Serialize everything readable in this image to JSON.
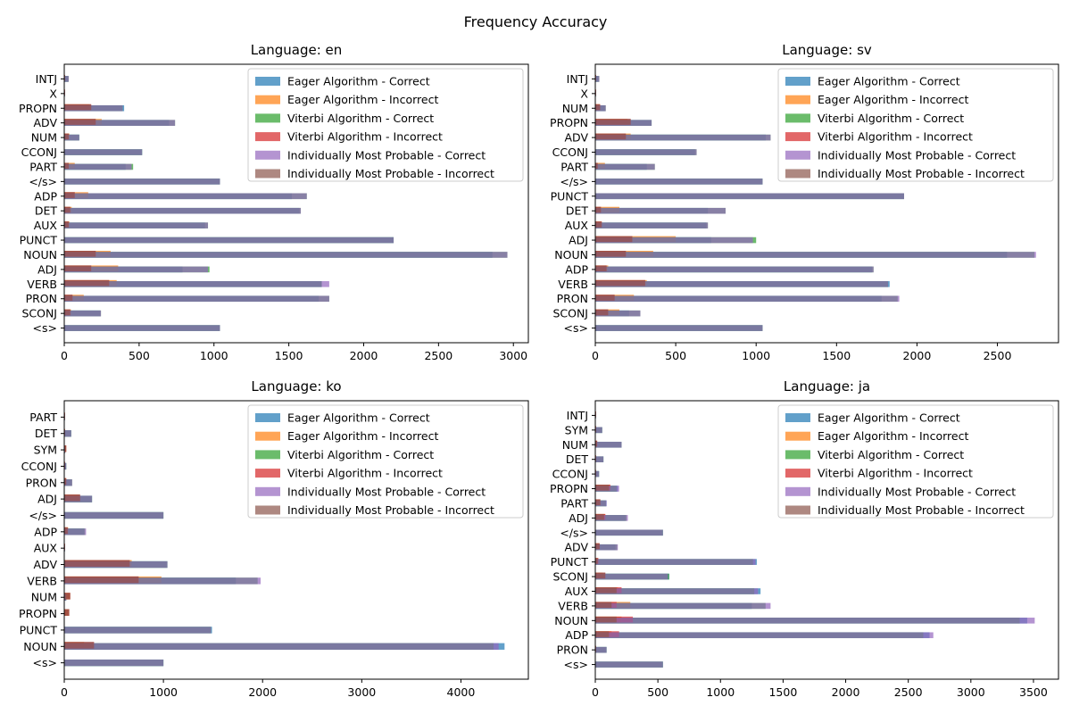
{
  "figure_title": "Frequency Accuracy",
  "legend_labels": [
    "Eager Algorithm - Correct",
    "Eager Algorithm - Incorrect",
    "Viterbi Algorithm - Correct",
    "Viterbi Algorithm - Incorrect",
    "Individually Most Probable - Correct",
    "Individually Most Probable - Incorrect"
  ],
  "colors": [
    "#1f77b4",
    "#ff7f0e",
    "#2ca02c",
    "#d62728",
    "#9467bd",
    "#8c564b"
  ],
  "chart_data": [
    {
      "type": "bar",
      "orientation": "horizontal",
      "title": "Language: en",
      "legend_position": "top-right",
      "categories": [
        "<s>",
        "SCONJ",
        "PRON",
        "VERB",
        "ADJ",
        "NOUN",
        "PUNCT",
        "AUX",
        "DET",
        "ADP",
        "</s>",
        "PART",
        "CCONJ",
        "NUM",
        "ADV",
        "PROPN",
        "X",
        "INTJ"
      ],
      "xlim": [
        0,
        3100
      ],
      "xticks": [
        0,
        500,
        1000,
        1500,
        2000,
        2500,
        3000
      ],
      "series": [
        {
          "name": "Eager Algorithm - Correct",
          "values": [
            1040,
            240,
            1700,
            1720,
            790,
            2860,
            2200,
            940,
            1570,
            1520,
            1040,
            410,
            520,
            100,
            700,
            400,
            2,
            25
          ]
        },
        {
          "name": "Eager Algorithm - Incorrect",
          "values": [
            0,
            45,
            130,
            350,
            360,
            310,
            0,
            35,
            50,
            160,
            0,
            70,
            0,
            35,
            250,
            170,
            2,
            5
          ]
        },
        {
          "name": "Viterbi Algorithm - Correct",
          "values": [
            1040,
            245,
            1770,
            1720,
            970,
            2960,
            2200,
            960,
            1580,
            1620,
            1040,
            460,
            520,
            100,
            740,
            390,
            2,
            30
          ]
        },
        {
          "name": "Viterbi Algorithm - Incorrect",
          "values": [
            0,
            40,
            55,
            300,
            180,
            210,
            0,
            30,
            40,
            70,
            0,
            30,
            0,
            30,
            210,
            180,
            2,
            3
          ]
        },
        {
          "name": "Individually Most Probable - Correct",
          "values": [
            1040,
            245,
            1770,
            1770,
            960,
            2960,
            2200,
            960,
            1580,
            1620,
            1040,
            450,
            520,
            100,
            740,
            390,
            2,
            30
          ]
        },
        {
          "name": "Individually Most Probable - Incorrect",
          "values": [
            0,
            40,
            55,
            300,
            180,
            210,
            0,
            30,
            40,
            70,
            0,
            30,
            0,
            30,
            210,
            180,
            2,
            3
          ]
        }
      ]
    },
    {
      "type": "bar",
      "orientation": "horizontal",
      "title": "Language: sv",
      "legend_position": "top-right",
      "categories": [
        "<s>",
        "SCONJ",
        "PRON",
        "VERB",
        "ADP",
        "NOUN",
        "ADJ",
        "AUX",
        "DET",
        "PUNCT",
        "</s>",
        "PART",
        "CCONJ",
        "ADV",
        "PROPN",
        "NUM",
        "X",
        "INTJ"
      ],
      "xlim": [
        0,
        2880
      ],
      "xticks": [
        0,
        500,
        1000,
        1500,
        2000,
        2500
      ],
      "series": [
        {
          "name": "Eager Algorithm - Correct",
          "values": [
            1040,
            210,
            1780,
            1830,
            1720,
            2560,
            720,
            690,
            700,
            1920,
            1040,
            320,
            620,
            1060,
            350,
            60,
            2,
            20
          ]
        },
        {
          "name": "Eager Algorithm - Incorrect",
          "values": [
            0,
            150,
            240,
            320,
            80,
            360,
            500,
            40,
            150,
            0,
            0,
            60,
            0,
            220,
            200,
            30,
            2,
            5
          ]
        },
        {
          "name": "Viterbi Algorithm - Correct",
          "values": [
            1040,
            280,
            1880,
            1820,
            1730,
            2730,
            1000,
            700,
            810,
            1920,
            1040,
            370,
            630,
            1090,
            350,
            65,
            2,
            25
          ]
        },
        {
          "name": "Viterbi Algorithm - Incorrect",
          "values": [
            0,
            80,
            120,
            310,
            70,
            190,
            230,
            40,
            35,
            0,
            0,
            15,
            0,
            190,
            220,
            30,
            2,
            3
          ]
        },
        {
          "name": "Individually Most Probable - Correct",
          "values": [
            1040,
            280,
            1890,
            1820,
            1730,
            2740,
            980,
            700,
            810,
            1920,
            1040,
            370,
            630,
            1090,
            350,
            65,
            2,
            25
          ]
        },
        {
          "name": "Individually Most Probable - Incorrect",
          "values": [
            0,
            80,
            120,
            310,
            70,
            190,
            230,
            40,
            35,
            0,
            0,
            15,
            0,
            190,
            220,
            30,
            2,
            3
          ]
        }
      ]
    },
    {
      "type": "bar",
      "orientation": "horizontal",
      "title": "Language: ko",
      "legend_position": "top-right",
      "categories": [
        "<s>",
        "NOUN",
        "PUNCT",
        "PROPN",
        "NUM",
        "VERB",
        "ADV",
        "AUX",
        "ADP",
        "</s>",
        "ADJ",
        "PRON",
        "CCONJ",
        "SYM",
        "DET",
        "PART"
      ],
      "xlim": [
        0,
        4680
      ],
      "xticks": [
        0,
        1000,
        2000,
        3000,
        4000
      ],
      "series": [
        {
          "name": "Eager Algorithm - Correct",
          "values": [
            1000,
            4440,
            1490,
            0,
            20,
            1730,
            1040,
            3,
            200,
            1000,
            280,
            70,
            20,
            5,
            70,
            2
          ]
        },
        {
          "name": "Eager Algorithm - Incorrect",
          "values": [
            0,
            200,
            0,
            50,
            60,
            980,
            680,
            2,
            40,
            0,
            150,
            20,
            2,
            20,
            2,
            2
          ]
        },
        {
          "name": "Viterbi Algorithm - Correct",
          "values": [
            1000,
            4330,
            1480,
            0,
            20,
            1950,
            1040,
            3,
            210,
            1000,
            280,
            80,
            20,
            10,
            70,
            2
          ]
        },
        {
          "name": "Viterbi Algorithm - Incorrect",
          "values": [
            0,
            300,
            0,
            50,
            60,
            750,
            660,
            2,
            35,
            0,
            160,
            20,
            2,
            20,
            2,
            2
          ]
        },
        {
          "name": "Individually Most Probable - Correct",
          "values": [
            1000,
            4380,
            1480,
            0,
            20,
            1980,
            1040,
            3,
            220,
            1000,
            280,
            80,
            20,
            10,
            70,
            2
          ]
        },
        {
          "name": "Individually Most Probable - Incorrect",
          "values": [
            0,
            300,
            0,
            50,
            60,
            750,
            660,
            2,
            35,
            0,
            160,
            20,
            2,
            20,
            2,
            2
          ]
        }
      ]
    },
    {
      "type": "bar",
      "orientation": "horizontal",
      "title": "Language: ja",
      "legend_position": "top-right",
      "categories": [
        "<s>",
        "PRON",
        "ADP",
        "NOUN",
        "VERB",
        "AUX",
        "SCONJ",
        "PUNCT",
        "ADV",
        "</s>",
        "ADJ",
        "PART",
        "PROPN",
        "CCONJ",
        "DET",
        "NUM",
        "SYM",
        "INTJ"
      ],
      "xlim": [
        0,
        3700
      ],
      "xticks": [
        0,
        500,
        1000,
        1500,
        2000,
        2500,
        3000,
        3500
      ],
      "series": [
        {
          "name": "Eager Algorithm - Correct",
          "values": [
            540,
            90,
            2670,
            3450,
            1250,
            1320,
            590,
            1290,
            160,
            540,
            240,
            90,
            180,
            30,
            65,
            210,
            55,
            2
          ]
        },
        {
          "name": "Eager Algorithm - Incorrect",
          "values": [
            0,
            5,
            130,
            210,
            280,
            180,
            60,
            20,
            30,
            0,
            80,
            40,
            120,
            5,
            5,
            15,
            5,
            2
          ]
        },
        {
          "name": "Viterbi Algorithm - Correct",
          "values": [
            540,
            90,
            2620,
            3390,
            1360,
            1270,
            590,
            1260,
            175,
            540,
            250,
            85,
            170,
            30,
            65,
            210,
            55,
            2
          ]
        },
        {
          "name": "Viterbi Algorithm - Incorrect",
          "values": [
            0,
            5,
            190,
            300,
            170,
            210,
            80,
            25,
            35,
            0,
            80,
            40,
            120,
            5,
            5,
            15,
            5,
            2
          ]
        },
        {
          "name": "Individually Most Probable - Correct",
          "values": [
            540,
            90,
            2700,
            3510,
            1400,
            1300,
            580,
            1280,
            180,
            540,
            260,
            90,
            190,
            30,
            65,
            210,
            55,
            2
          ]
        },
        {
          "name": "Individually Most Probable - Incorrect",
          "values": [
            0,
            5,
            110,
            170,
            130,
            170,
            80,
            20,
            35,
            0,
            70,
            40,
            110,
            5,
            5,
            15,
            5,
            2
          ]
        }
      ]
    }
  ]
}
